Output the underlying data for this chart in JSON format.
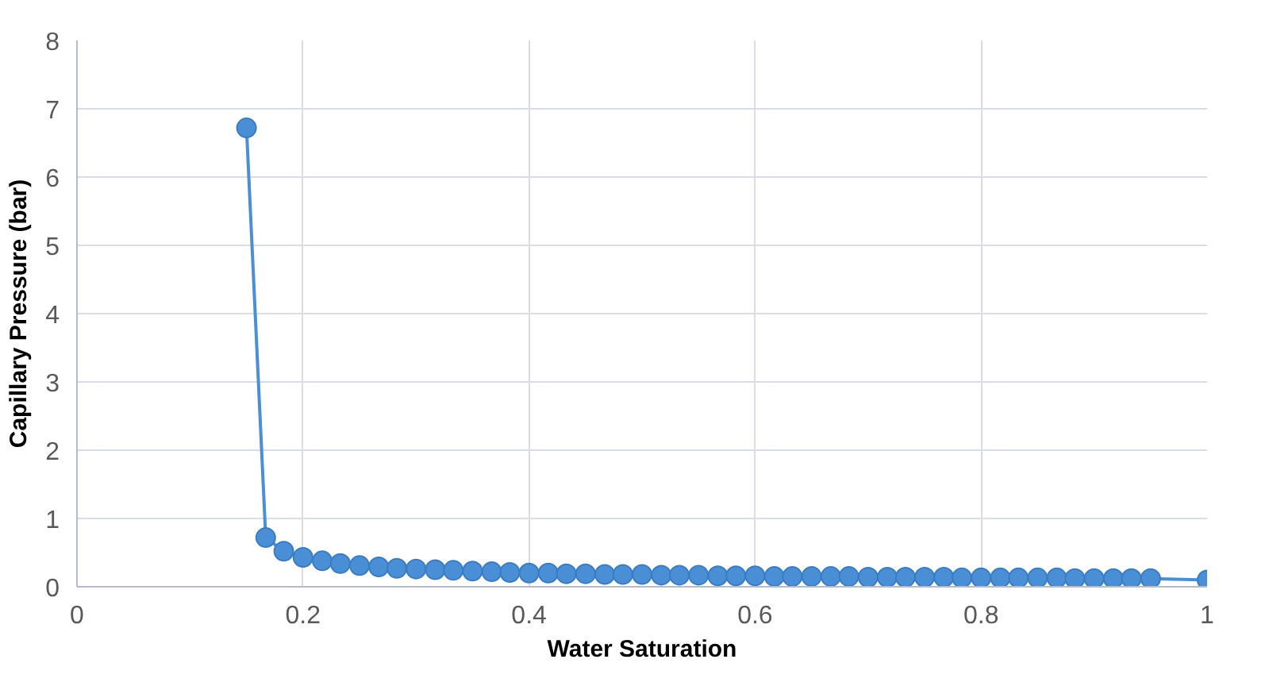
{
  "chart_data": {
    "type": "line",
    "xlabel": "Water Saturation",
    "ylabel": "Capillary Pressure (bar)",
    "x": [
      0.15,
      0.167,
      0.183,
      0.2,
      0.217,
      0.233,
      0.25,
      0.267,
      0.283,
      0.3,
      0.317,
      0.333,
      0.35,
      0.367,
      0.383,
      0.4,
      0.417,
      0.433,
      0.45,
      0.467,
      0.483,
      0.5,
      0.517,
      0.533,
      0.55,
      0.567,
      0.583,
      0.6,
      0.617,
      0.633,
      0.65,
      0.667,
      0.683,
      0.7,
      0.717,
      0.733,
      0.75,
      0.767,
      0.783,
      0.8,
      0.817,
      0.833,
      0.85,
      0.867,
      0.883,
      0.9,
      0.917,
      0.933,
      0.95,
      1.0
    ],
    "series": [
      {
        "color": "#4a8fd6",
        "values": [
          6.72,
          0.72,
          0.52,
          0.43,
          0.38,
          0.34,
          0.31,
          0.29,
          0.27,
          0.26,
          0.25,
          0.24,
          0.23,
          0.22,
          0.21,
          0.2,
          0.2,
          0.19,
          0.19,
          0.18,
          0.18,
          0.18,
          0.17,
          0.17,
          0.17,
          0.16,
          0.16,
          0.16,
          0.15,
          0.15,
          0.15,
          0.15,
          0.15,
          0.14,
          0.14,
          0.14,
          0.14,
          0.14,
          0.13,
          0.13,
          0.13,
          0.13,
          0.13,
          0.13,
          0.12,
          0.12,
          0.12,
          0.12,
          0.12,
          0.1
        ]
      }
    ],
    "xlim": [
      0,
      1
    ],
    "xticks": [
      0,
      0.2,
      0.4,
      0.6,
      0.8,
      1
    ],
    "ylim": [
      0,
      8
    ],
    "yticks": [
      0,
      1,
      2,
      3,
      4,
      5,
      6,
      7,
      8
    ],
    "grid": true,
    "marker": "circle",
    "line_style": "solid"
  }
}
